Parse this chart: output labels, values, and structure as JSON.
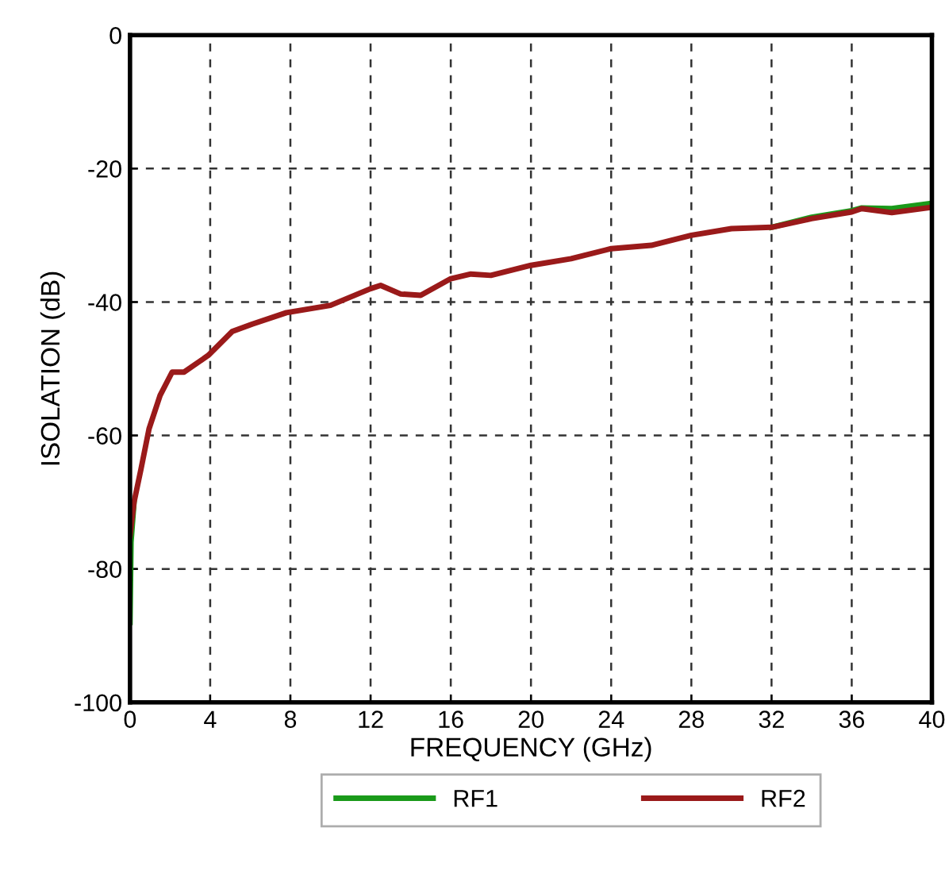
{
  "chart_data": {
    "type": "line",
    "xlabel": "FREQUENCY (GHz)",
    "ylabel": "ISOLATION (dB)",
    "xlim": [
      0,
      40
    ],
    "ylim": [
      -100,
      0
    ],
    "xticks": [
      0,
      4,
      8,
      12,
      16,
      20,
      24,
      28,
      32,
      36,
      40
    ],
    "yticks": [
      -100,
      -80,
      -60,
      -40,
      -20,
      0
    ],
    "grid": true,
    "legend": "bottom",
    "line_style": "solid",
    "series": [
      {
        "name": "RF1",
        "color": "#1a9a1a",
        "x": [
          0,
          0.05,
          0.2,
          0.55,
          0.95,
          1.5,
          2.1,
          2.7,
          3.9,
          5.1,
          6.1,
          7.8,
          10,
          12,
          12.5,
          13.5,
          14.5,
          16,
          17,
          18,
          20,
          22,
          24,
          26,
          28,
          30,
          32,
          34,
          36,
          36.5,
          38,
          40
        ],
        "values": [
          -88,
          -76,
          -70,
          null,
          null,
          null,
          null,
          null,
          null,
          null,
          null,
          null,
          null,
          null,
          null,
          null,
          null,
          null,
          null,
          null,
          null,
          null,
          null,
          null,
          null,
          null,
          -28.8,
          -27.3,
          -26.3,
          -25.9,
          -26,
          -25.2
        ]
      },
      {
        "name": "RF2",
        "color": "#9a1a1a",
        "x": [
          0,
          0.2,
          0.55,
          0.95,
          1.5,
          2.1,
          2.7,
          3.9,
          5.1,
          6.1,
          7.8,
          10,
          12,
          12.5,
          13.5,
          14.5,
          16,
          17,
          18,
          20,
          22,
          24,
          26,
          28,
          30,
          32,
          34,
          36,
          36.5,
          38,
          40
        ],
        "values": [
          -75,
          -70,
          -65,
          -59,
          -54,
          -50.5,
          -50.5,
          -48,
          -44.4,
          -43.3,
          -41.6,
          -40.5,
          -38,
          -37.5,
          -38.8,
          -39,
          -36.5,
          -35.8,
          -36,
          -34.5,
          -33.5,
          -32,
          -31.5,
          -30,
          -29,
          -28.8,
          -27.5,
          -26.5,
          -26,
          -26.6,
          -25.8
        ]
      }
    ]
  }
}
